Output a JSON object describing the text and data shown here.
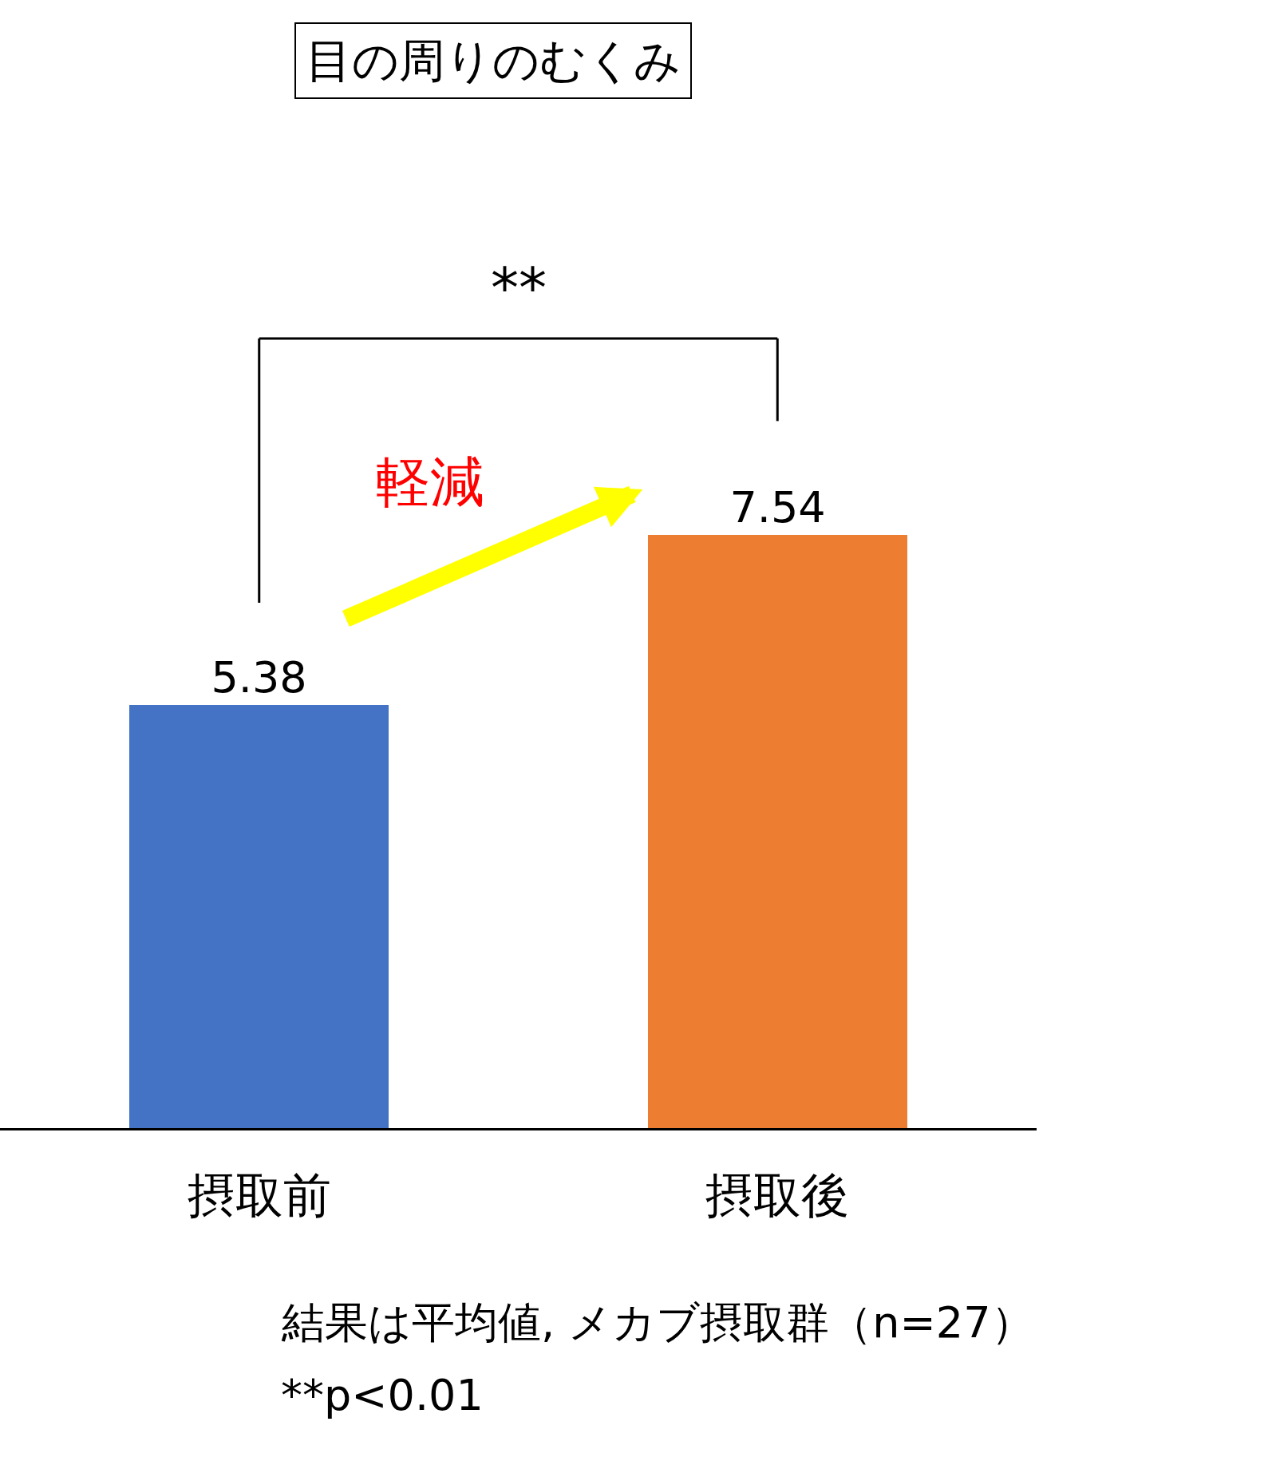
{
  "chart_data": {
    "type": "bar",
    "title": "目の周りのむくみ",
    "categories": [
      "摂取前",
      "摂取後"
    ],
    "values": [
      5.38,
      7.54
    ],
    "colors": [
      "#4472c4",
      "#ed7d31"
    ],
    "data_labels": true,
    "annotations": [
      "**",
      "軽減",
      "結果は平均値, メカブ摂取群（n=27）",
      "**p<0.01"
    ]
  }
}
